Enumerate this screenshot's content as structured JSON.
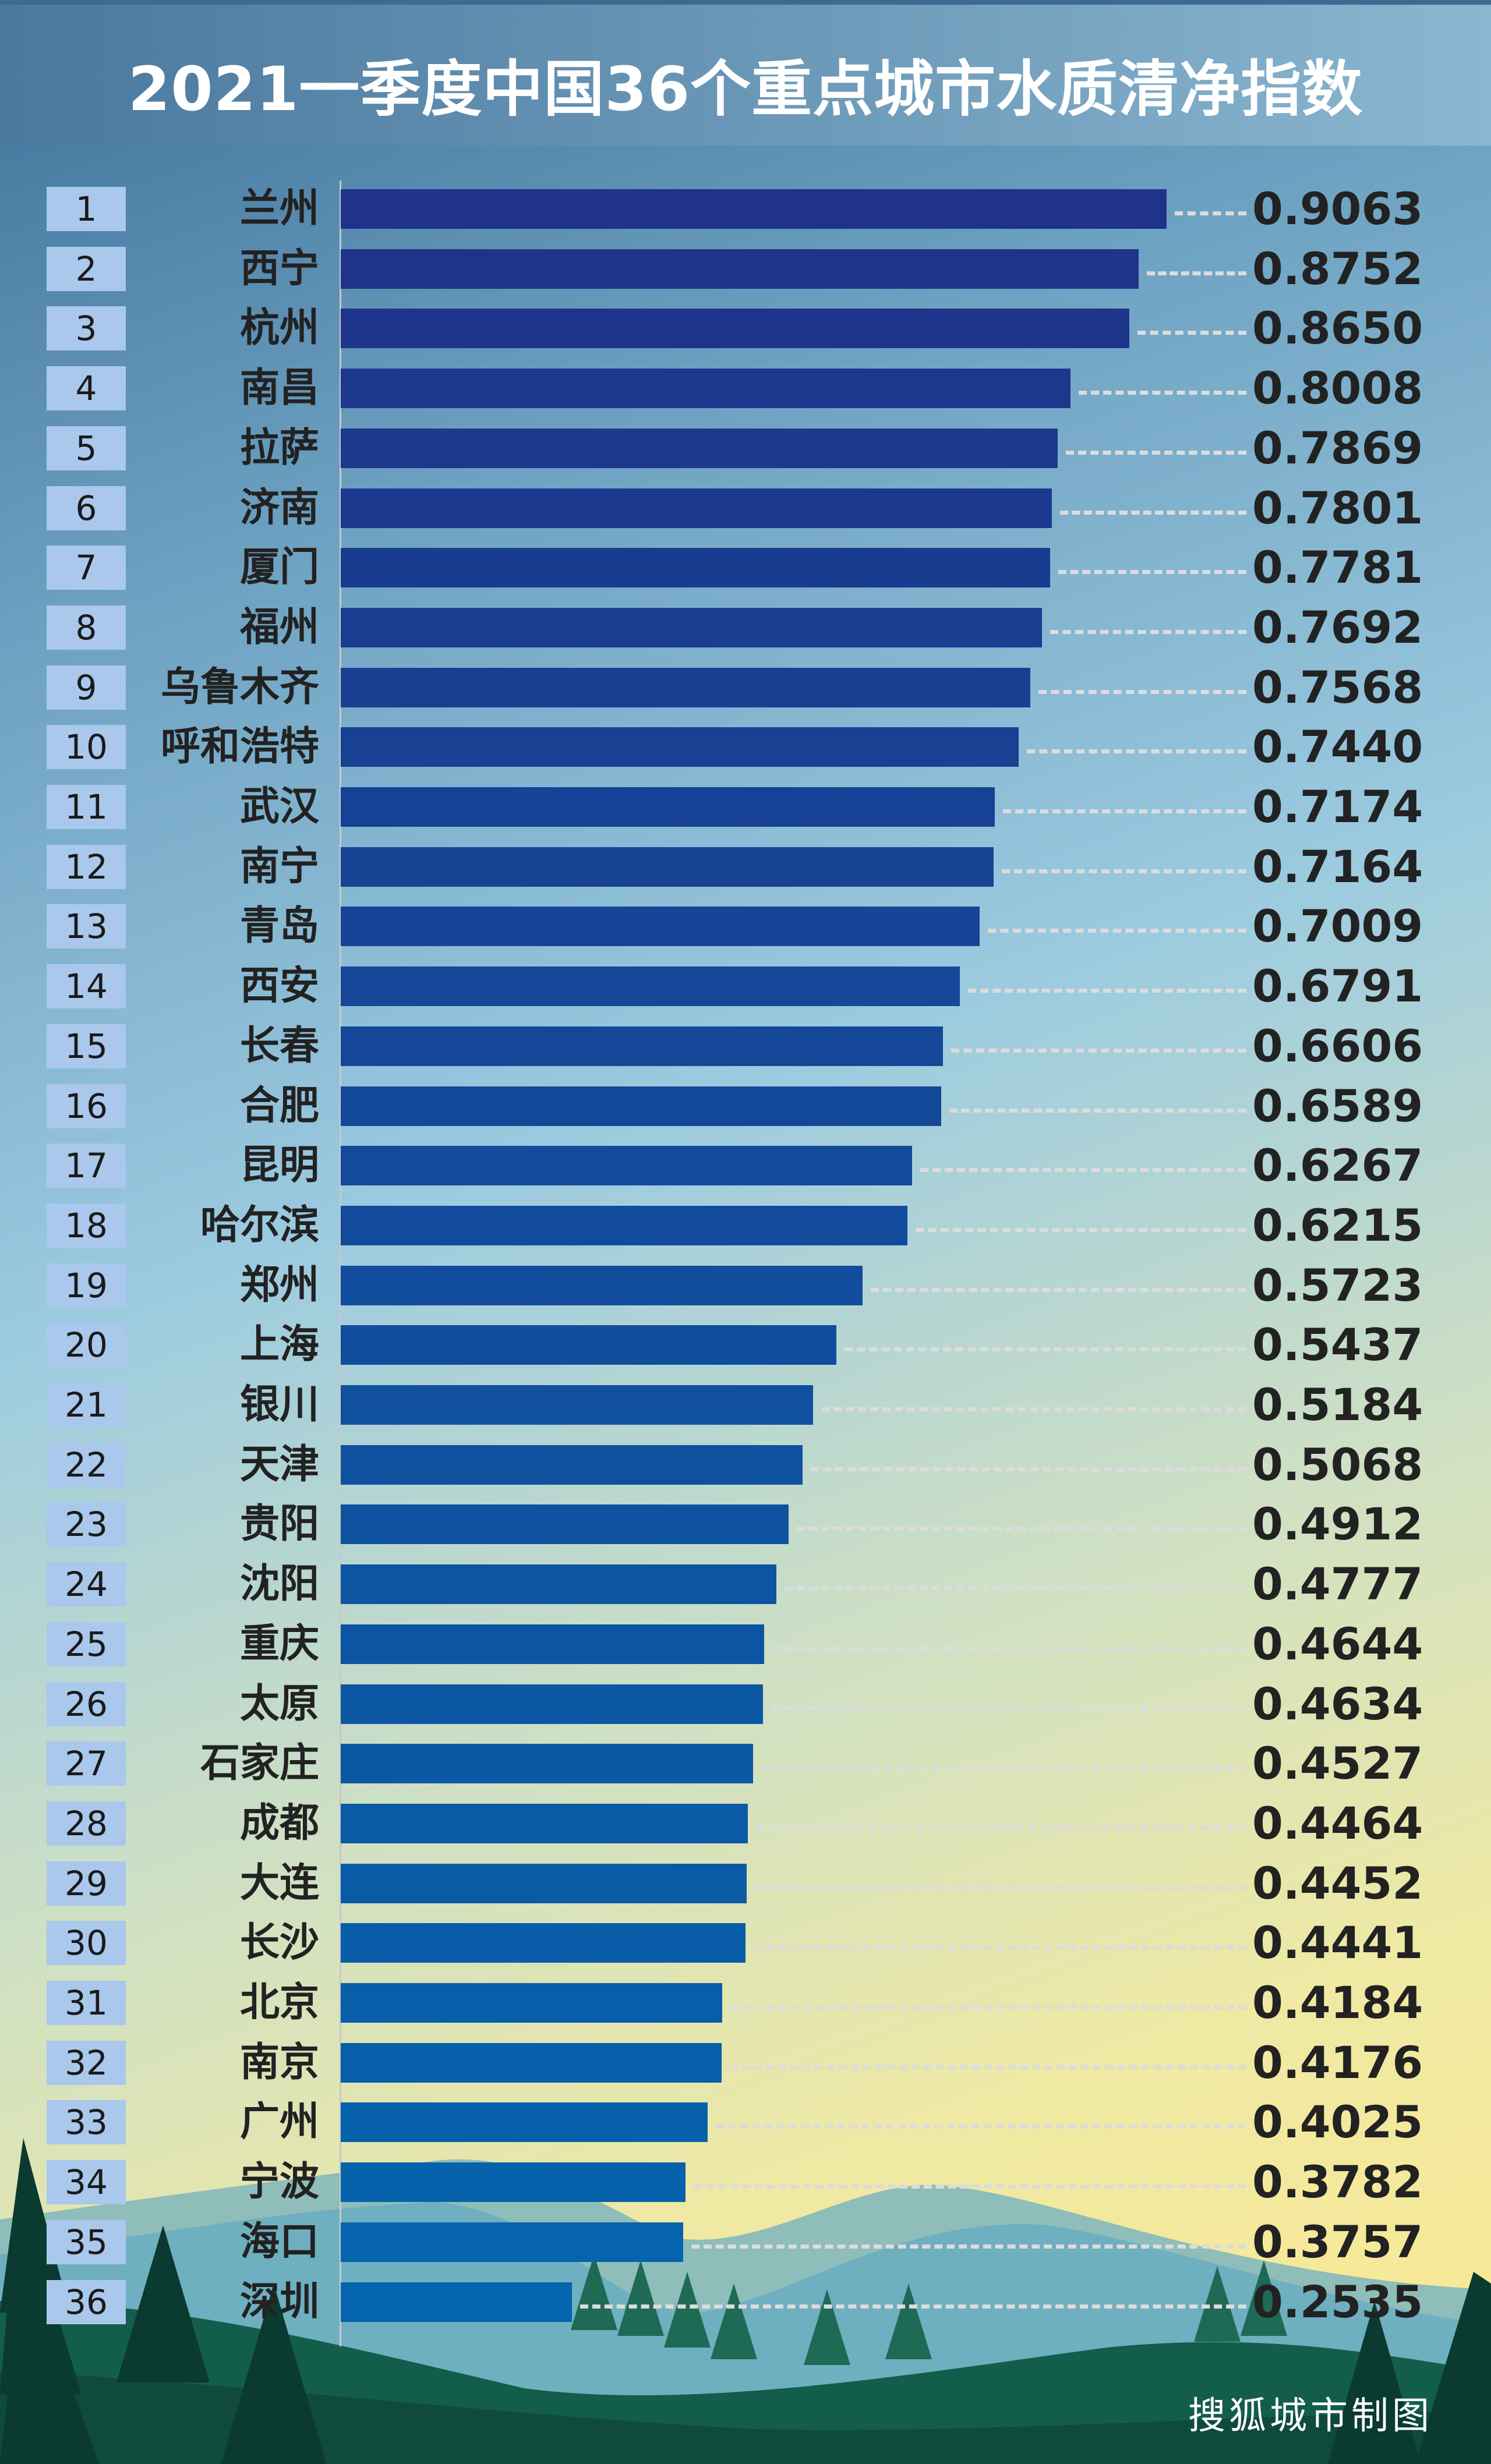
{
  "title": "2021一季度中国36个重点城市水质清净指数",
  "credit": "搜狐城市制图",
  "colors": {
    "bar_top": "#1f338a",
    "bar_bottom": "#0465ad",
    "rank_box": "#a9c8ec"
  },
  "chart_data": {
    "type": "bar",
    "orientation": "horizontal",
    "title": "2021一季度中国36个重点城市水质清净指数",
    "ranks": [
      1,
      2,
      3,
      4,
      5,
      6,
      7,
      8,
      9,
      10,
      11,
      12,
      13,
      14,
      15,
      16,
      17,
      18,
      19,
      20,
      21,
      22,
      23,
      24,
      25,
      26,
      27,
      28,
      29,
      30,
      31,
      32,
      33,
      34,
      35,
      36
    ],
    "categories": [
      "兰州",
      "西宁",
      "杭州",
      "南昌",
      "拉萨",
      "济南",
      "厦门",
      "福州",
      "乌鲁木齐",
      "呼和浩特",
      "武汉",
      "南宁",
      "青岛",
      "西安",
      "长春",
      "合肥",
      "昆明",
      "哈尔滨",
      "郑州",
      "上海",
      "银川",
      "天津",
      "贵阳",
      "沈阳",
      "重庆",
      "太原",
      "石家庄",
      "成都",
      "大连",
      "长沙",
      "北京",
      "南京",
      "广州",
      "宁波",
      "海口",
      "深圳"
    ],
    "values": [
      0.9063,
      0.8752,
      0.865,
      0.8008,
      0.7869,
      0.7801,
      0.7781,
      0.7692,
      0.7568,
      0.744,
      0.7174,
      0.7164,
      0.7009,
      0.6791,
      0.6606,
      0.6589,
      0.6267,
      0.6215,
      0.5723,
      0.5437,
      0.5184,
      0.5068,
      0.4912,
      0.4777,
      0.4644,
      0.4634,
      0.4527,
      0.4464,
      0.4452,
      0.4441,
      0.4184,
      0.4176,
      0.4025,
      0.3782,
      0.3757,
      0.2535
    ],
    "labels": [
      "0.9063",
      "0.8752",
      "0.8650",
      "0.8008",
      "0.7869",
      "0.7801",
      "0.7781",
      "0.7692",
      "0.7568",
      "0.7440",
      "0.7174",
      "0.7164",
      "0.7009",
      "0.6791",
      "0.6606",
      "0.6589",
      "0.6267",
      "0.6215",
      "0.5723",
      "0.5437",
      "0.5184",
      "0.5068",
      "0.4912",
      "0.4777",
      "0.4644",
      "0.4634",
      "0.4527",
      "0.4464",
      "0.4452",
      "0.4441",
      "0.4184",
      "0.4176",
      "0.4025",
      "0.3782",
      "0.3757",
      "0.2535"
    ],
    "xlim": [
      0,
      1
    ],
    "grid": false,
    "legend": "none"
  }
}
